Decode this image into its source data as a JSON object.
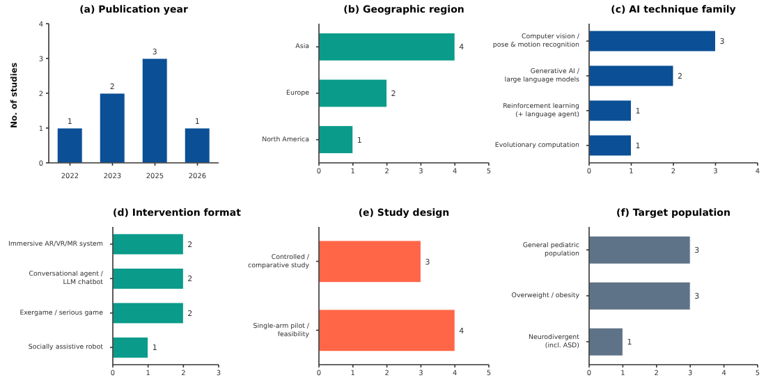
{
  "chart_data": [
    {
      "type": "bar",
      "title": "(a) Publication year",
      "ylabel": "No. of studies",
      "categories": [
        "2022",
        "2023",
        "2025",
        "2026"
      ],
      "values": [
        1,
        2,
        3,
        1
      ],
      "color": "#0b4f96",
      "ylim": [
        0,
        4
      ],
      "yticks": [
        0,
        1,
        2,
        3,
        4
      ],
      "data_labels": true,
      "grid": false,
      "legend": false
    },
    {
      "type": "bar",
      "orientation": "horizontal",
      "title": "(b) Geographic region",
      "categories": [
        "Asia",
        "Europe",
        "North America"
      ],
      "values": [
        4,
        2,
        1
      ],
      "color": "#0a9b8a",
      "xlim": [
        0,
        5
      ],
      "xticks": [
        0,
        1,
        2,
        3,
        4,
        5
      ],
      "data_labels": true,
      "grid": false,
      "legend": false
    },
    {
      "type": "bar",
      "orientation": "horizontal",
      "title": "(c) AI technique family",
      "categories": [
        "Computer vision /\npose & motion recognition",
        "Generative AI /\nlarge language models",
        "Reinforcement learning\n(+ language agent)",
        "Evolutionary computation"
      ],
      "values": [
        3,
        2,
        1,
        1
      ],
      "color": "#0b4f96",
      "xlim": [
        0,
        4
      ],
      "xticks": [
        0,
        1,
        2,
        3,
        4
      ],
      "data_labels": true,
      "grid": false,
      "legend": false
    },
    {
      "type": "bar",
      "orientation": "horizontal",
      "title": "(d) Intervention format",
      "categories": [
        "Immersive AR/VR/MR system",
        "Conversational agent /\nLLM chatbot",
        "Exergame / serious game",
        "Socially assistive robot"
      ],
      "values": [
        2,
        2,
        2,
        1
      ],
      "color": "#0a9b8a",
      "xlim": [
        0,
        3
      ],
      "xticks": [
        0,
        1,
        2,
        3
      ],
      "data_labels": true,
      "grid": false,
      "legend": false
    },
    {
      "type": "bar",
      "orientation": "horizontal",
      "title": "(e) Study design",
      "categories": [
        "Controlled /\ncomparative study",
        "Single-arm pilot /\nfeasibility"
      ],
      "values": [
        3,
        4
      ],
      "color": "#ff6647",
      "xlim": [
        0,
        5
      ],
      "xticks": [
        0,
        1,
        2,
        3,
        4,
        5
      ],
      "data_labels": true,
      "grid": false,
      "legend": false
    },
    {
      "type": "bar",
      "orientation": "horizontal",
      "title": "(f) Target population",
      "categories": [
        "General pediatric\npopulation",
        "Overweight / obesity",
        "Neurodivergent\n(incl. ASD)"
      ],
      "values": [
        3,
        3,
        1
      ],
      "color": "#5f7388",
      "xlim": [
        0,
        5
      ],
      "xticks": [
        0,
        1,
        2,
        3,
        4,
        5
      ],
      "data_labels": true,
      "grid": false,
      "legend": false
    }
  ]
}
